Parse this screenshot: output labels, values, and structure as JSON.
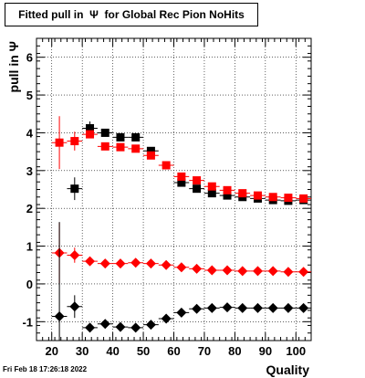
{
  "chart_data": {
    "type": "scatter",
    "title": "Fitted pull in  Ψ  for Global Rec Pion NoHits",
    "xlabel": "Quality",
    "ylabel": "pull in  Ψ",
    "xlim": [
      15,
      105
    ],
    "ylim": [
      -1.5,
      6.5
    ],
    "x_ticks": [
      20,
      30,
      40,
      50,
      60,
      70,
      80,
      90,
      100
    ],
    "y_ticks": [
      -1,
      0,
      1,
      2,
      3,
      4,
      5,
      6
    ],
    "grid": true,
    "timestamp": "Fri Feb 18 17:26:18 2022",
    "series": [
      {
        "marker": "square",
        "color": "#000000",
        "x": [
          27.5,
          32.5,
          37.5,
          42.5,
          47.5,
          52.5,
          62.5,
          67.5,
          72.5,
          77.5,
          82.5,
          87.5,
          92.5,
          97.5,
          102.5
        ],
        "y": [
          2.52,
          4.12,
          4.0,
          3.88,
          3.88,
          3.52,
          2.68,
          2.52,
          2.4,
          2.34,
          2.3,
          2.26,
          2.22,
          2.2,
          2.22
        ],
        "yerr": [
          0.3,
          0.18,
          0.1,
          0.08,
          0.08,
          0.08,
          0.06,
          0.06,
          0.06,
          0.06,
          0.05,
          0.05,
          0.05,
          0.05,
          0.05
        ]
      },
      {
        "marker": "square",
        "color": "#ff0000",
        "x": [
          22.5,
          27.5,
          32.5,
          37.5,
          42.5,
          47.5,
          52.5,
          57.5,
          62.5,
          67.5,
          72.5,
          77.5,
          82.5,
          87.5,
          92.5,
          97.5,
          102.5
        ],
        "y": [
          3.74,
          3.78,
          3.96,
          3.64,
          3.62,
          3.58,
          3.4,
          3.14,
          2.84,
          2.74,
          2.58,
          2.48,
          2.4,
          2.34,
          2.3,
          2.28,
          2.26
        ],
        "yerr": [
          0.7,
          0.25,
          0.1,
          0.06,
          0.06,
          0.06,
          0.06,
          0.06,
          0.06,
          0.05,
          0.05,
          0.05,
          0.05,
          0.05,
          0.05,
          0.05,
          0.05
        ]
      },
      {
        "marker": "diamond",
        "color": "#ff0000",
        "x": [
          22.5,
          27.5,
          32.5,
          37.5,
          42.5,
          47.5,
          52.5,
          57.5,
          62.5,
          67.5,
          72.5,
          77.5,
          82.5,
          87.5,
          92.5,
          97.5,
          102.5
        ],
        "y": [
          0.82,
          0.76,
          0.6,
          0.54,
          0.54,
          0.56,
          0.54,
          0.5,
          0.44,
          0.4,
          0.36,
          0.36,
          0.34,
          0.34,
          0.34,
          0.32,
          0.32
        ],
        "yerr": [
          0.8,
          0.2,
          0.06,
          0.05,
          0.04,
          0.04,
          0.04,
          0.04,
          0.04,
          0.04,
          0.04,
          0.03,
          0.03,
          0.03,
          0.03,
          0.03,
          0.03
        ]
      },
      {
        "marker": "diamond",
        "color": "#000000",
        "x": [
          22.5,
          27.5,
          32.5,
          37.5,
          42.5,
          47.5,
          52.5,
          57.5,
          62.5,
          67.5,
          72.5,
          77.5,
          82.5,
          87.5,
          92.5,
          97.5,
          102.5
        ],
        "y": [
          -0.86,
          -0.6,
          -1.16,
          -1.06,
          -1.14,
          -1.16,
          -1.08,
          -0.92,
          -0.76,
          -0.66,
          -0.64,
          -0.62,
          -0.64,
          -0.64,
          -0.64,
          -0.64,
          -0.64
        ],
        "yerr": [
          2.5,
          0.3,
          0.08,
          0.06,
          0.05,
          0.05,
          0.05,
          0.05,
          0.04,
          0.04,
          0.04,
          0.04,
          0.04,
          0.04,
          0.04,
          0.04,
          0.04
        ]
      }
    ]
  }
}
